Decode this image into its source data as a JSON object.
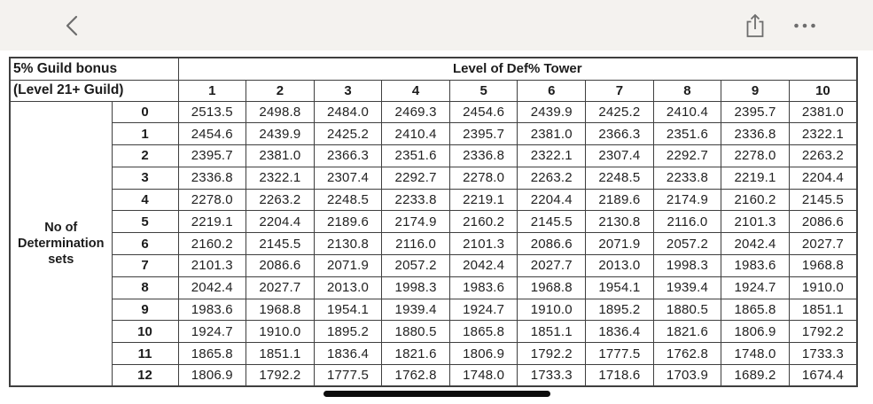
{
  "toolbar": {
    "icons": {
      "back": "chevron-left-icon",
      "share": "share-icon",
      "more": "ellipsis-icon"
    }
  },
  "table": {
    "corner": {
      "line1": "5% Guild bonus",
      "line2": "(Level 21+ Guild)"
    },
    "column_group_header": "Level of Def% Tower",
    "column_headers": [
      "1",
      "2",
      "3",
      "4",
      "5",
      "6",
      "7",
      "8",
      "9",
      "10"
    ],
    "row_group_label_lines": [
      "No of",
      "Determination",
      "sets"
    ],
    "row_headers": [
      "0",
      "1",
      "2",
      "3",
      "4",
      "5",
      "6",
      "7",
      "8",
      "9",
      "10",
      "11",
      "12"
    ],
    "rows": [
      [
        "2513.5",
        "2498.8",
        "2484.0",
        "2469.3",
        "2454.6",
        "2439.9",
        "2425.2",
        "2410.4",
        "2395.7",
        "2381.0"
      ],
      [
        "2454.6",
        "2439.9",
        "2425.2",
        "2410.4",
        "2395.7",
        "2381.0",
        "2366.3",
        "2351.6",
        "2336.8",
        "2322.1"
      ],
      [
        "2395.7",
        "2381.0",
        "2366.3",
        "2351.6",
        "2336.8",
        "2322.1",
        "2307.4",
        "2292.7",
        "2278.0",
        "2263.2"
      ],
      [
        "2336.8",
        "2322.1",
        "2307.4",
        "2292.7",
        "2278.0",
        "2263.2",
        "2248.5",
        "2233.8",
        "2219.1",
        "2204.4"
      ],
      [
        "2278.0",
        "2263.2",
        "2248.5",
        "2233.8",
        "2219.1",
        "2204.4",
        "2189.6",
        "2174.9",
        "2160.2",
        "2145.5"
      ],
      [
        "2219.1",
        "2204.4",
        "2189.6",
        "2174.9",
        "2160.2",
        "2145.5",
        "2130.8",
        "2116.0",
        "2101.3",
        "2086.6"
      ],
      [
        "2160.2",
        "2145.5",
        "2130.8",
        "2116.0",
        "2101.3",
        "2086.6",
        "2071.9",
        "2057.2",
        "2042.4",
        "2027.7"
      ],
      [
        "2101.3",
        "2086.6",
        "2071.9",
        "2057.2",
        "2042.4",
        "2027.7",
        "2013.0",
        "1998.3",
        "1983.6",
        "1968.8"
      ],
      [
        "2042.4",
        "2027.7",
        "2013.0",
        "1998.3",
        "1983.6",
        "1968.8",
        "1954.1",
        "1939.4",
        "1924.7",
        "1910.0"
      ],
      [
        "1983.6",
        "1968.8",
        "1954.1",
        "1939.4",
        "1924.7",
        "1910.0",
        "1895.2",
        "1880.5",
        "1865.8",
        "1851.1"
      ],
      [
        "1924.7",
        "1910.0",
        "1895.2",
        "1880.5",
        "1865.8",
        "1851.1",
        "1836.4",
        "1821.6",
        "1806.9",
        "1792.2"
      ],
      [
        "1865.8",
        "1851.1",
        "1836.4",
        "1821.6",
        "1806.9",
        "1792.2",
        "1777.5",
        "1762.8",
        "1748.0",
        "1733.3"
      ],
      [
        "1806.9",
        "1792.2",
        "1777.5",
        "1762.8",
        "1748.0",
        "1733.3",
        "1718.6",
        "1703.9",
        "1689.2",
        "1674.4"
      ]
    ]
  },
  "colors": {
    "topbar_bg": "#f4f2ef",
    "border": "#3f3f3f",
    "text": "#1c1c1c",
    "icon": "#6d6d6d",
    "home_indicator": "#0c0c0c"
  }
}
